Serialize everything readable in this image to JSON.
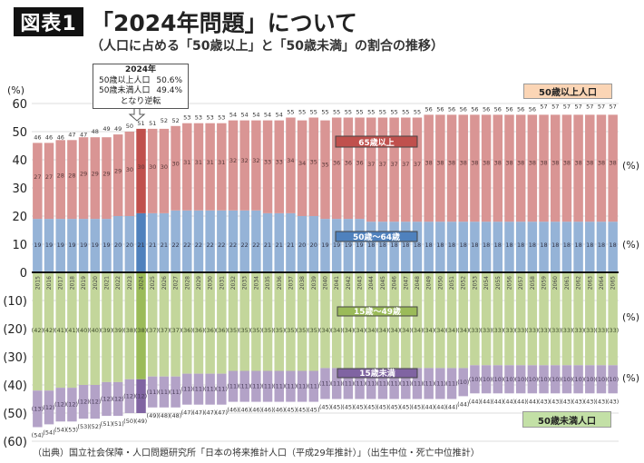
{
  "header": {
    "badge": "図表1",
    "title": "「2024年問題」について",
    "subtitle": "（人口に占める「50歳以上」と「50歳未満」の割合の推移）"
  },
  "callout": {
    "year": "2024年",
    "line1_label": "50歳以上人口",
    "line1_value": "50.6%",
    "line2_label": "50歳未満人口",
    "line2_value": "49.4%",
    "line3": "となり逆転"
  },
  "legend": {
    "over50": "50歳以上人口",
    "under50": "50歳未満人口"
  },
  "footer": "（出典）国立社会保障・人口問題研究所「日本の将来推計人口（平成29年推計）」（出生中位・死亡中位推計）",
  "colors": {
    "age65plus": "#d99594",
    "age65plus_highlight": "#c0504d",
    "age50_64": "#95b3d7",
    "age50_64_highlight": "#4f81bd",
    "age15_49": "#c3d69b",
    "age15_49_highlight": "#9bbb59",
    "under15": "#b3a2c7",
    "under15_highlight": "#8064a2"
  },
  "chart_data": {
    "type": "bar",
    "stacked": true,
    "diverging": true,
    "title": "「2024年問題」について",
    "subtitle": "（人口に占める「50歳以上」と「50歳未満」の割合の推移）",
    "ylabel": "(%)",
    "ylim": [
      -60,
      60
    ],
    "yticks": [
      60,
      50,
      40,
      30,
      20,
      10,
      0,
      -10,
      -20,
      -30,
      -40,
      -50,
      -60
    ],
    "ytick_labels": [
      "60",
      "50",
      "40",
      "30",
      "20",
      "10",
      "0",
      "(10)",
      "(20)",
      "(30)",
      "(40)",
      "(50)",
      "(60)"
    ],
    "grid": true,
    "highlight_category": "2024",
    "categories": [
      "2015",
      "2016",
      "2017",
      "2018",
      "2019",
      "2020",
      "2021",
      "2022",
      "2023",
      "2024",
      "2025",
      "2026",
      "2027",
      "2028",
      "2029",
      "2030",
      "2031",
      "2032",
      "2033",
      "2034",
      "2035",
      "2036",
      "2037",
      "2038",
      "2039",
      "2040",
      "2041",
      "2042",
      "2043",
      "2044",
      "2045",
      "2046",
      "2047",
      "2048",
      "2049",
      "2050",
      "2051",
      "2052",
      "2053",
      "2054",
      "2055",
      "2056",
      "2057",
      "2058",
      "2059",
      "2060",
      "2061",
      "2062",
      "2063",
      "2064",
      "2065"
    ],
    "series": [
      {
        "name": "50歳～64歳",
        "side": "up",
        "values": [
          19,
          19,
          19,
          19,
          19,
          19,
          19,
          20,
          20,
          21,
          21,
          21,
          22,
          22,
          22,
          22,
          22,
          22,
          22,
          22,
          21,
          21,
          21,
          20,
          20,
          19,
          19,
          19,
          19,
          18,
          18,
          18,
          18,
          18,
          18,
          18,
          18,
          18,
          18,
          18,
          18,
          18,
          18,
          18,
          18,
          18,
          18,
          18,
          18,
          18,
          18
        ]
      },
      {
        "name": "65歳以上",
        "side": "up",
        "values": [
          27,
          27,
          28,
          28,
          29,
          29,
          29,
          29,
          30,
          30,
          30,
          30,
          30,
          31,
          31,
          31,
          31,
          32,
          32,
          32,
          33,
          33,
          34,
          34,
          35,
          35,
          36,
          36,
          36,
          37,
          37,
          37,
          37,
          37,
          38,
          38,
          38,
          38,
          38,
          38,
          38,
          38,
          38,
          38,
          38,
          38,
          38,
          38,
          38,
          38,
          38
        ]
      },
      {
        "name": "15歳～49歳",
        "side": "down",
        "values": [
          42,
          42,
          41,
          41,
          40,
          40,
          39,
          39,
          38,
          38,
          37,
          37,
          37,
          36,
          36,
          36,
          36,
          35,
          35,
          35,
          35,
          35,
          35,
          35,
          35,
          34,
          34,
          34,
          34,
          34,
          34,
          34,
          34,
          34,
          34,
          34,
          34,
          34,
          33,
          33,
          33,
          33,
          33,
          33,
          33,
          33,
          33,
          33,
          33,
          33,
          33
        ]
      },
      {
        "name": "15歳未満",
        "side": "down",
        "values": [
          13,
          12,
          12,
          12,
          12,
          12,
          12,
          12,
          12,
          12,
          11,
          11,
          11,
          11,
          11,
          11,
          11,
          11,
          11,
          11,
          11,
          11,
          11,
          11,
          11,
          11,
          11,
          11,
          11,
          11,
          11,
          11,
          11,
          11,
          11,
          11,
          11,
          10,
          10,
          10,
          10,
          10,
          10,
          10,
          10,
          10,
          10,
          10,
          10,
          10,
          10
        ]
      }
    ],
    "totals_over50": [
      46,
      46,
      46,
      47,
      47,
      48,
      49,
      49,
      50,
      51,
      51,
      52,
      52,
      53,
      53,
      53,
      53,
      54,
      54,
      54,
      54,
      54,
      55,
      55,
      55,
      55,
      55,
      55,
      55,
      55,
      55,
      55,
      55,
      55,
      56,
      56,
      56,
      56,
      56,
      56,
      56,
      56,
      56,
      56,
      57,
      57,
      57,
      57,
      57,
      57,
      57
    ],
    "totals_under50": [
      54,
      54,
      54,
      53,
      53,
      52,
      51,
      51,
      50,
      49,
      49,
      48,
      48,
      47,
      47,
      47,
      47,
      46,
      46,
      46,
      46,
      46,
      45,
      45,
      45,
      45,
      45,
      45,
      45,
      45,
      45,
      45,
      45,
      45,
      44,
      44,
      44,
      44,
      44,
      44,
      44,
      44,
      44,
      44,
      43,
      43,
      43,
      43,
      43,
      43,
      43
    ],
    "series_labels": [
      "65歳以上",
      "50歳～64歳",
      "15歳～49歳",
      "15歳未満"
    ],
    "unit_label": "(%)"
  }
}
